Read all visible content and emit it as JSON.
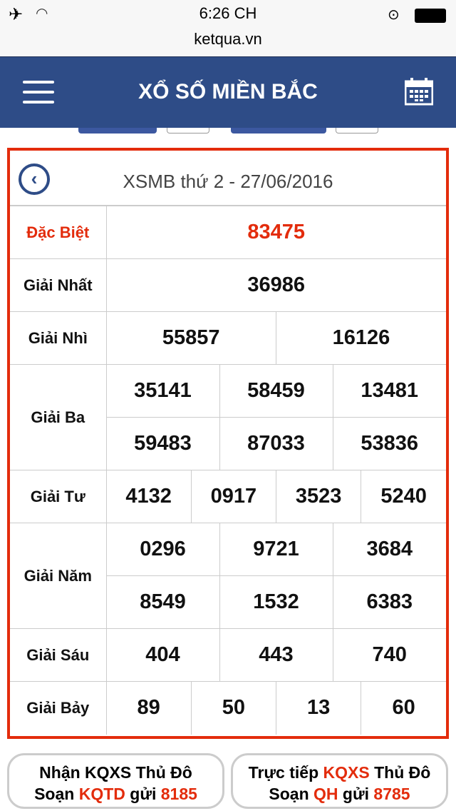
{
  "status_bar": {
    "time": "6:26 CH",
    "url": "ketqua.vn",
    "icons": [
      "airplane-icon",
      "wifi-icon",
      "rotation-lock-icon",
      "battery-icon"
    ]
  },
  "nav": {
    "title": "XỔ SỐ MIỀN BẮC",
    "menu_icon": "hamburger-icon",
    "calendar_icon": "calendar-icon"
  },
  "result": {
    "heading": "XSMB thứ 2 - 27/06/2016",
    "rows": [
      {
        "label": "Đặc Biệt",
        "numbers": [
          "83475"
        ]
      },
      {
        "label": "Giải Nhất",
        "numbers": [
          "36986"
        ]
      },
      {
        "label": "Giải Nhì",
        "numbers": [
          "55857",
          "16126"
        ]
      },
      {
        "label": "Giải Ba",
        "numbers": [
          "35141",
          "58459",
          "13481",
          "59483",
          "87033",
          "53836"
        ]
      },
      {
        "label": "Giải Tư",
        "numbers": [
          "4132",
          "0917",
          "3523",
          "5240"
        ]
      },
      {
        "label": "Giải Năm",
        "numbers": [
          "0296",
          "9721",
          "3684",
          "8549",
          "1532",
          "6383"
        ]
      },
      {
        "label": "Giải Sáu",
        "numbers": [
          "404",
          "443",
          "740"
        ]
      },
      {
        "label": "Giải Bảy",
        "numbers": [
          "89",
          "50",
          "13",
          "60"
        ]
      }
    ]
  },
  "sms": [
    {
      "line1": "Nhận KQXS Thủ Đô",
      "l2a": "Soạn ",
      "code": "KQTD",
      "l2b": " gửi ",
      "number": "8185"
    },
    {
      "l1a": "Trực tiếp ",
      "l1code": "KQXS",
      "l1b": " Thủ Đô",
      "l2a": "Soạn ",
      "code": "QH",
      "l2b": " gửi ",
      "number": "8785"
    }
  ],
  "colors": {
    "accent": "#e32c0c",
    "nav": "#2e4c87"
  }
}
